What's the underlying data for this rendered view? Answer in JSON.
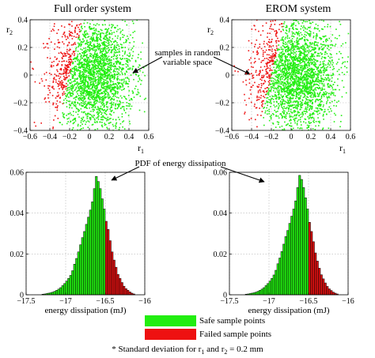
{
  "chart_data": [
    {
      "type": "scatter",
      "title": "Full order system",
      "xlabel": "r",
      "xlabel_sub": "1",
      "ylabel": "r",
      "ylabel_sub": "2",
      "xlim": [
        -0.6,
        0.6
      ],
      "ylim": [
        -0.4,
        0.4
      ],
      "x_ticks": [
        -0.6,
        -0.4,
        -0.2,
        0,
        0.2,
        0.4,
        0.6
      ],
      "x_tick_labels": [
        "−0.6",
        "−0.4",
        "−0.2",
        "0",
        "0.2",
        "0.4",
        "0.6"
      ],
      "y_ticks": [
        -0.4,
        -0.2,
        0,
        0.2,
        0.4
      ],
      "y_tick_labels": [
        "−0.4",
        "−0.2",
        "0",
        "0.2",
        "0.4"
      ],
      "grid": true,
      "series": [
        {
          "name": "Safe sample points",
          "distribution": {
            "x_mean": 0.05,
            "x_std": 0.2,
            "y_mean": 0.0,
            "y_std": 0.2
          },
          "region": "x > -0.2 + 0.33*y",
          "color": "#22ee11",
          "n_points": 2600
        },
        {
          "name": "Failed sample points",
          "distribution": {
            "x_mean": 0.05,
            "x_std": 0.2,
            "y_mean": 0.0,
            "y_std": 0.2
          },
          "region": "x <= -0.2 + 0.33*y",
          "color": "#ee1111",
          "n_points": 2600
        }
      ],
      "annotation": "samples in random\nvariable space"
    },
    {
      "type": "scatter",
      "title": "EROM system",
      "xlabel": "r",
      "xlabel_sub": "1",
      "ylabel": "r",
      "ylabel_sub": "2",
      "xlim": [
        -0.6,
        0.6
      ],
      "ylim": [
        -0.4,
        0.4
      ],
      "x_ticks": [
        -0.6,
        -0.4,
        -0.2,
        0,
        0.2,
        0.4,
        0.6
      ],
      "x_tick_labels": [
        "−0.6",
        "−0.4",
        "−0.2",
        "0",
        "0.2",
        "0.4",
        "0.6"
      ],
      "y_ticks": [
        -0.4,
        -0.2,
        0,
        0.2,
        0.4
      ],
      "y_tick_labels": [
        "−0.4",
        "−0.2",
        "0",
        "0.2",
        "0.4"
      ],
      "grid": true,
      "series": [
        {
          "name": "Safe sample points",
          "distribution": {
            "x_mean": 0.05,
            "x_std": 0.2,
            "y_mean": 0.0,
            "y_std": 0.2
          },
          "region": "x > -0.2 + 0.33*y",
          "color": "#22ee11",
          "n_points": 2600
        },
        {
          "name": "Failed sample points",
          "distribution": {
            "x_mean": 0.05,
            "x_std": 0.2,
            "y_mean": 0.0,
            "y_std": 0.2
          },
          "region": "x <= -0.2 + 0.33*y",
          "color": "#ee1111",
          "n_points": 2600
        }
      ]
    },
    {
      "type": "bar",
      "title": "",
      "xlabel": "energy dissipation (mJ)",
      "ylabel": "",
      "xlim": [
        -17.5,
        -16.0
      ],
      "ylim": [
        0,
        0.06
      ],
      "x_ticks": [
        -17.5,
        -17,
        -16.5,
        -16
      ],
      "x_tick_labels": [
        "−17.5",
        "−17",
        "−16.5",
        "−16"
      ],
      "y_ticks": [
        0,
        0.02,
        0.04,
        0.06
      ],
      "y_tick_labels": [
        "0",
        "0.02",
        "0.04",
        "0.06"
      ],
      "grid": true,
      "bin_width": 0.025,
      "failure_threshold": -16.5,
      "bins": [
        -17.3,
        -17.275,
        -17.25,
        -17.225,
        -17.2,
        -17.175,
        -17.15,
        -17.125,
        -17.1,
        -17.075,
        -17.05,
        -17.025,
        -17.0,
        -16.975,
        -16.95,
        -16.925,
        -16.9,
        -16.875,
        -16.85,
        -16.825,
        -16.8,
        -16.775,
        -16.75,
        -16.725,
        -16.7,
        -16.675,
        -16.65,
        -16.625,
        -16.6,
        -16.575,
        -16.55,
        -16.525,
        -16.5,
        -16.475,
        -16.45,
        -16.425,
        -16.4,
        -16.375,
        -16.35,
        -16.325,
        -16.3,
        -16.275,
        -16.25,
        -16.225,
        -16.2,
        -16.175,
        -16.15
      ],
      "values": [
        0.0003,
        0.0004,
        0.0006,
        0.0008,
        0.001,
        0.0013,
        0.0017,
        0.0022,
        0.0028,
        0.0035,
        0.0045,
        0.0055,
        0.0067,
        0.008,
        0.0095,
        0.0118,
        0.015,
        0.0178,
        0.021,
        0.0245,
        0.028,
        0.031,
        0.0345,
        0.038,
        0.0415,
        0.0455,
        0.052,
        0.058,
        0.0555,
        0.052,
        0.047,
        0.042,
        0.036,
        0.032,
        0.0265,
        0.021,
        0.017,
        0.0135,
        0.01,
        0.008,
        0.006,
        0.0042,
        0.003,
        0.0022,
        0.0014,
        0.0008,
        0.0004
      ],
      "series": [
        {
          "name": "Safe sample points",
          "color": "#22ee11"
        },
        {
          "name": "Failed sample points",
          "color": "#dd1111"
        }
      ],
      "annotation": "PDF of energy dissipation"
    },
    {
      "type": "bar",
      "title": "",
      "xlabel": "energy dissipation (mJ)",
      "ylabel": "",
      "xlim": [
        -17.5,
        -16.0
      ],
      "ylim": [
        0,
        0.06
      ],
      "x_ticks": [
        -17.5,
        -17,
        -16.5,
        -16
      ],
      "x_tick_labels": [
        "−17.5",
        "−17",
        "−16.5",
        "−16"
      ],
      "y_ticks": [
        0,
        0.02,
        0.04,
        0.06
      ],
      "y_tick_labels": [
        "0",
        "0.02",
        "0.04",
        "0.06"
      ],
      "grid": true,
      "bin_width": 0.025,
      "failure_threshold": -16.5,
      "bins": [
        -17.3,
        -17.275,
        -17.25,
        -17.225,
        -17.2,
        -17.175,
        -17.15,
        -17.125,
        -17.1,
        -17.075,
        -17.05,
        -17.025,
        -17.0,
        -16.975,
        -16.95,
        -16.925,
        -16.9,
        -16.875,
        -16.85,
        -16.825,
        -16.8,
        -16.775,
        -16.75,
        -16.725,
        -16.7,
        -16.675,
        -16.65,
        -16.625,
        -16.6,
        -16.575,
        -16.55,
        -16.525,
        -16.5,
        -16.475,
        -16.45,
        -16.425,
        -16.4,
        -16.375,
        -16.35,
        -16.325,
        -16.3,
        -16.275,
        -16.25,
        -16.225,
        -16.2,
        -16.175,
        -16.15
      ],
      "values": [
        0.0003,
        0.0004,
        0.0006,
        0.0008,
        0.001,
        0.0013,
        0.0017,
        0.0022,
        0.0028,
        0.0035,
        0.0045,
        0.0055,
        0.0067,
        0.008,
        0.0097,
        0.012,
        0.0152,
        0.018,
        0.0212,
        0.0248,
        0.0285,
        0.0315,
        0.035,
        0.0385,
        0.042,
        0.046,
        0.0525,
        0.0585,
        0.0565,
        0.0525,
        0.0475,
        0.042,
        0.0355,
        0.031,
        0.026,
        0.0205,
        0.0165,
        0.013,
        0.0098,
        0.0078,
        0.0058,
        0.0041,
        0.0029,
        0.0021,
        0.0013,
        0.0008,
        0.0004
      ],
      "series": [
        {
          "name": "Safe sample points",
          "color": "#22ee11"
        },
        {
          "name": "Failed sample points",
          "color": "#dd1111"
        }
      ]
    }
  ],
  "legend": {
    "items": [
      {
        "label": "Safe sample points",
        "color": "#22ee11"
      },
      {
        "label": "Failed sample points",
        "color": "#ee1111"
      }
    ]
  },
  "footnote": {
    "prefix": "* Standard deviation for r",
    "sub1": "1",
    "middle": " and r",
    "sub2": "2",
    "suffix": " = 0.2 mm"
  }
}
